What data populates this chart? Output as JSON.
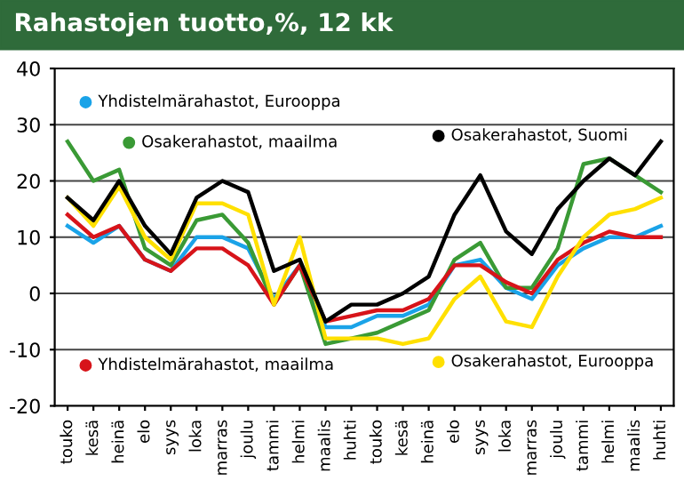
{
  "chart_data": {
    "type": "line",
    "title": "Rahastojen tuotto,%, 12 kk",
    "categories": [
      "touko",
      "kesä",
      "heinä",
      "elo",
      "syys",
      "loka",
      "marras",
      "joulu",
      "tammi",
      "helmi",
      "maalis",
      "huhti",
      "touko",
      "kesä",
      "heinä",
      "elo",
      "syys",
      "loka",
      "marras",
      "joulu",
      "tammi",
      "helmi",
      "maalis",
      "huhti"
    ],
    "series": [
      {
        "name": "Yhdistelmärahastot, Eurooppa",
        "color": "#1aa3e8",
        "values": [
          12,
          9,
          12,
          6,
          4,
          10,
          10,
          8,
          -1,
          5,
          -6,
          -6,
          -4,
          -4,
          -2,
          5,
          6,
          1,
          -1,
          5,
          8,
          10,
          10,
          12
        ]
      },
      {
        "name": "Osakerahastot, maailma",
        "color": "#3a9a35",
        "values": [
          27,
          20,
          22,
          8,
          5,
          13,
          14,
          9,
          -2,
          5,
          -9,
          -8,
          -7,
          -5,
          -3,
          6,
          9,
          1,
          1,
          8,
          23,
          24,
          21,
          18
        ]
      },
      {
        "name": "Osakerahastot, Suomi",
        "color": "#000000",
        "values": [
          17,
          13,
          20,
          12,
          7,
          17,
          20,
          18,
          4,
          6,
          -5,
          -2,
          -2,
          0,
          3,
          14,
          21,
          11,
          7,
          15,
          20,
          24,
          21,
          27
        ]
      },
      {
        "name": "Yhdistelmärahastot, maailma",
        "color": "#d7141a",
        "values": [
          14,
          10,
          12,
          6,
          4,
          8,
          8,
          5,
          -2,
          5,
          -5,
          -4,
          -3,
          -3,
          -1,
          5,
          5,
          2,
          0,
          6,
          9,
          11,
          10,
          10
        ]
      },
      {
        "name": "Osakerahastot, Eurooppa",
        "color": "#ffe000",
        "values": [
          17,
          12,
          19,
          10,
          6,
          16,
          16,
          14,
          -2,
          10,
          -8,
          -8,
          -8,
          -9,
          -8,
          -1,
          3,
          -5,
          -6,
          3,
          10,
          14,
          15,
          17
        ]
      }
    ],
    "ylim": [
      -20,
      40
    ],
    "yticks": [
      -20,
      -10,
      0,
      10,
      20,
      30,
      40
    ],
    "grid": "y",
    "legend": "top left"
  }
}
